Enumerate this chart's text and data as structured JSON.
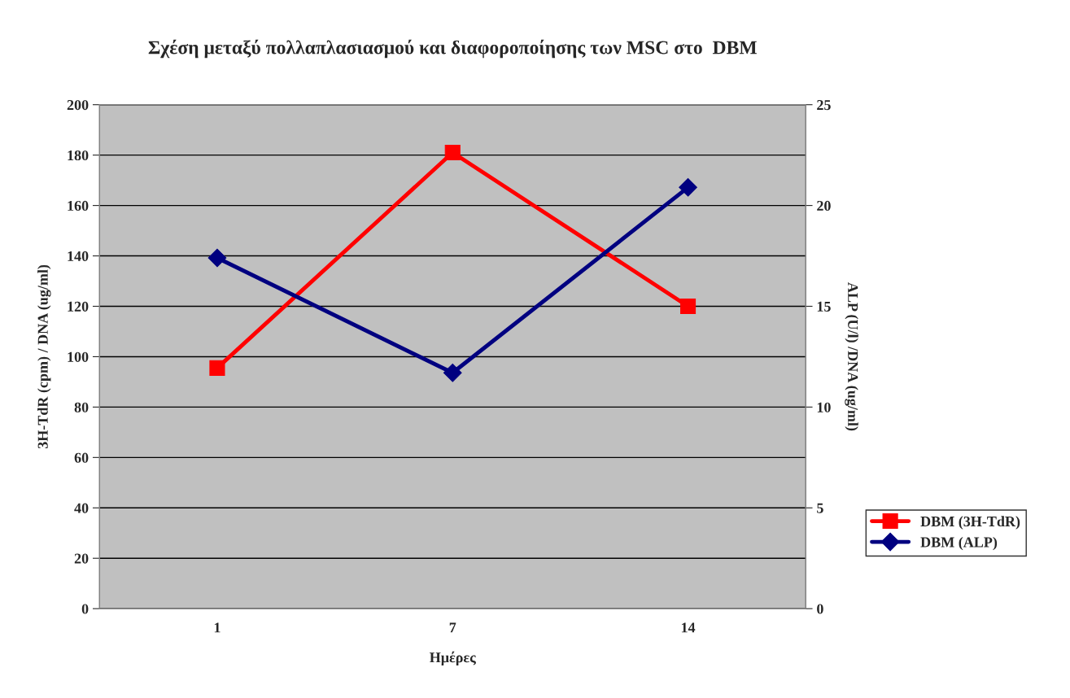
{
  "chart_data": {
    "type": "line",
    "title": "Σχέση μεταξύ πολλαπλασιασμού και διαφοροποίησης των MSC στο  DBM",
    "xlabel": "Ημέρες",
    "ylabel": "3H-TdR (cpm) / DNA (ug/ml)",
    "y2label": "ALP (U/l) /DNA (ug/ml)",
    "categories": [
      "1",
      "7",
      "14"
    ],
    "series": [
      {
        "name": "DBM (3H-TdR)",
        "color": "#ff0000",
        "values": [
          95.5,
          181,
          120
        ],
        "marker": "square"
      },
      {
        "name": "DBM (ALP)",
        "color": "#000080",
        "values": [
          17.4,
          11.7,
          20.9
        ],
        "axis": "y2",
        "marker": "diamond"
      }
    ],
    "ylim": [
      0,
      200
    ],
    "yticks": [
      0,
      20,
      40,
      60,
      80,
      100,
      120,
      140,
      160,
      180,
      200
    ],
    "y2lim": [
      0,
      25
    ],
    "y2ticks": [
      0,
      5,
      10,
      15,
      20,
      25
    ],
    "grid": "y",
    "legend": "right",
    "line_style": "solid"
  }
}
